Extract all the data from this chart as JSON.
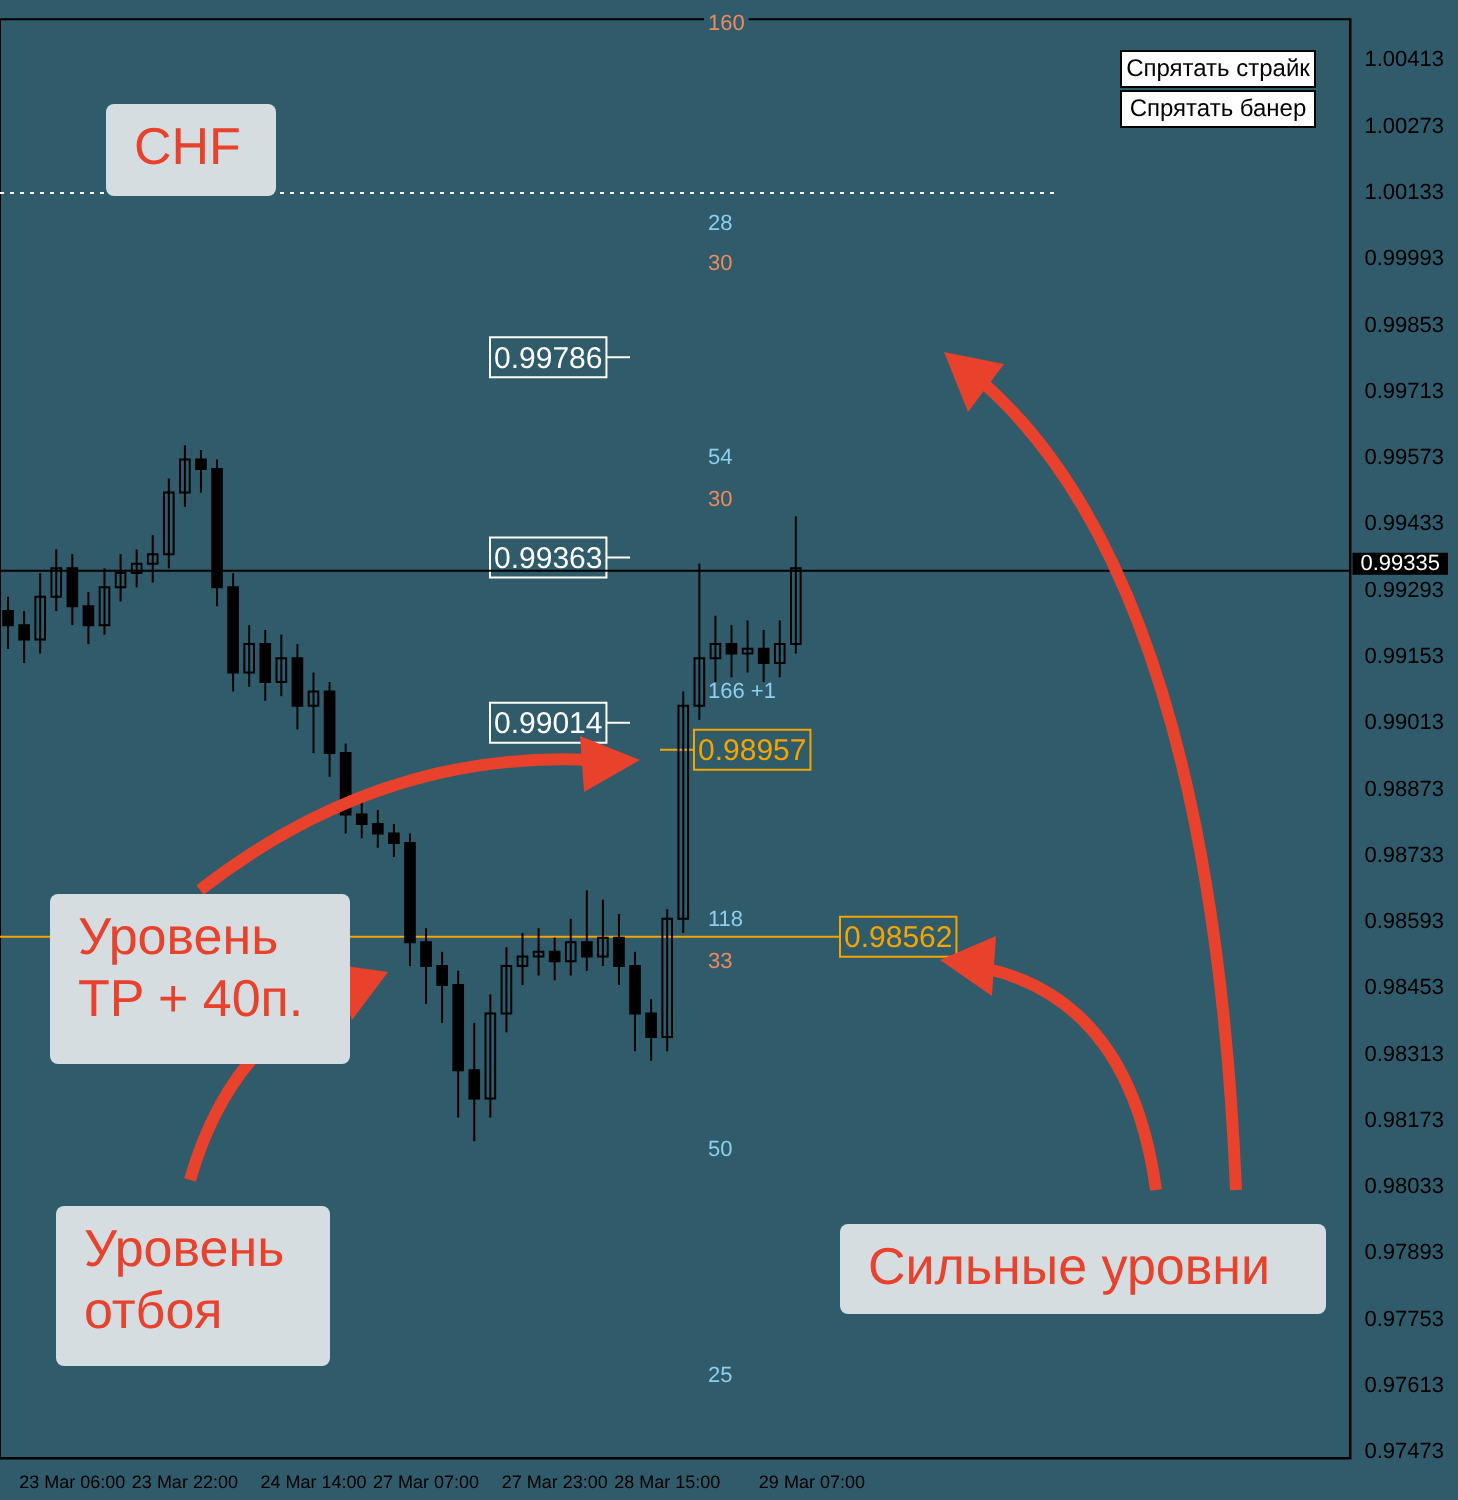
{
  "chart_data": {
    "type": "candlestick",
    "color": "#000000",
    "categories": [
      null,
      null,
      null,
      null,
      "23 Mar 06:00",
      null,
      null,
      null,
      null,
      null,
      null,
      "23 Mar 22:00",
      null,
      null,
      null,
      null,
      null,
      null,
      null,
      "24 Mar 14:00",
      null,
      null,
      null,
      null,
      null,
      null,
      "27 Mar 07:00",
      null,
      null,
      null,
      null,
      null,
      null,
      null,
      "27 Mar 23:00",
      null,
      null,
      null,
      null,
      null,
      null,
      "28 Mar 15:00",
      null,
      null,
      null,
      null,
      null,
      null,
      null,
      null,
      "29 Mar 07:00",
      null,
      null,
      null,
      null,
      null,
      null,
      null,
      null,
      null,
      null,
      null,
      null,
      null,
      null,
      null,
      null,
      null,
      null,
      null,
      null,
      null,
      null,
      null,
      null,
      null,
      null,
      null,
      null,
      null,
      null,
      null,
      null,
      null
    ],
    "ohlc": [
      [
        0.9925,
        0.9928,
        0.9917,
        0.9922
      ],
      [
        0.9922,
        0.9925,
        0.9914,
        0.9919
      ],
      [
        0.9919,
        0.9933,
        0.9916,
        0.9928
      ],
      [
        0.9928,
        0.9938,
        0.9925,
        0.9934
      ],
      [
        0.9934,
        0.9937,
        0.9922,
        0.9926
      ],
      [
        0.9926,
        0.9929,
        0.9918,
        0.9922
      ],
      [
        0.9922,
        0.9934,
        0.992,
        0.993
      ],
      [
        0.993,
        0.9937,
        0.9927,
        0.9933
      ],
      [
        0.9933,
        0.9938,
        0.993,
        0.9935
      ],
      [
        0.9935,
        0.9941,
        0.9931,
        0.9937
      ],
      [
        0.9937,
        0.9953,
        0.9934,
        0.995
      ],
      [
        0.995,
        0.996,
        0.9947,
        0.9957
      ],
      [
        0.9957,
        0.9959,
        0.995,
        0.9955
      ],
      [
        0.9955,
        0.9957,
        0.9926,
        0.993
      ],
      [
        0.993,
        0.9933,
        0.9908,
        0.9912
      ],
      [
        0.9912,
        0.9922,
        0.9909,
        0.9918
      ],
      [
        0.9918,
        0.9921,
        0.9906,
        0.991
      ],
      [
        0.991,
        0.992,
        0.9907,
        0.9915
      ],
      [
        0.9915,
        0.9918,
        0.99,
        0.9905
      ],
      [
        0.9905,
        0.9912,
        0.9895,
        0.9908
      ],
      [
        0.9908,
        0.991,
        0.989,
        0.9895
      ],
      [
        0.9895,
        0.9897,
        0.9878,
        0.9882
      ],
      [
        0.9882,
        0.9885,
        0.9877,
        0.988
      ],
      [
        0.988,
        0.9883,
        0.9875,
        0.9878
      ],
      [
        0.9878,
        0.988,
        0.9873,
        0.9876
      ],
      [
        0.9876,
        0.9878,
        0.985,
        0.9855
      ],
      [
        0.9855,
        0.9858,
        0.9842,
        0.985
      ],
      [
        0.985,
        0.9853,
        0.9838,
        0.9846
      ],
      [
        0.9846,
        0.9849,
        0.9818,
        0.9828
      ],
      [
        0.9828,
        0.9838,
        0.9813,
        0.9822
      ],
      [
        0.9822,
        0.9844,
        0.9818,
        0.984
      ],
      [
        0.984,
        0.9854,
        0.9836,
        0.985
      ],
      [
        0.985,
        0.9857,
        0.9846,
        0.9852
      ],
      [
        0.9852,
        0.9858,
        0.9848,
        0.9853
      ],
      [
        0.9853,
        0.9856,
        0.9847,
        0.9851
      ],
      [
        0.9851,
        0.986,
        0.9848,
        0.9855
      ],
      [
        0.9855,
        0.9866,
        0.9849,
        0.9852
      ],
      [
        0.9852,
        0.9864,
        0.985,
        0.9856
      ],
      [
        0.9856,
        0.9861,
        0.9846,
        0.985
      ],
      [
        0.985,
        0.9853,
        0.9832,
        0.984
      ],
      [
        0.984,
        0.9843,
        0.983,
        0.9835
      ],
      [
        0.9835,
        0.9862,
        0.9832,
        0.986
      ],
      [
        0.986,
        0.9908,
        0.9857,
        0.9905
      ],
      [
        0.9905,
        0.9935,
        0.9902,
        0.9915
      ],
      [
        0.9915,
        0.9924,
        0.991,
        0.9918
      ],
      [
        0.9918,
        0.9922,
        0.9911,
        0.9916
      ],
      [
        0.9916,
        0.9923,
        0.9912,
        0.9917
      ],
      [
        0.9917,
        0.9921,
        0.991,
        0.9914
      ],
      [
        0.9914,
        0.9923,
        0.9911,
        0.9918
      ],
      [
        0.9918,
        0.9945,
        0.9916,
        0.9934
      ],
      null,
      null,
      null,
      null,
      null,
      null,
      null,
      null,
      null,
      null,
      null,
      null,
      null,
      null,
      null,
      null,
      null,
      null,
      null,
      null,
      null,
      null,
      null,
      null,
      null,
      null,
      null,
      null,
      null,
      null,
      null,
      null,
      null,
      null
    ],
    "ylim": [
      0.9746,
      1.005
    ],
    "yticks": [
      1.00413,
      1.00273,
      1.00133,
      0.99993,
      0.99853,
      0.99713,
      0.99573,
      0.99433,
      0.99293,
      0.99153,
      0.99013,
      0.98873,
      0.98733,
      0.98593,
      0.98453,
      0.98313,
      0.98173,
      0.98033,
      0.97893,
      0.97753,
      0.97613,
      0.97473
    ],
    "grid": false,
    "legend": false,
    "ref_lines": [
      {
        "axis": "y",
        "value": 1.00133,
        "color": "#ffffff",
        "line_style": "dotted"
      },
      {
        "axis": "y",
        "value": 0.99786,
        "label": "0.99786",
        "color": "#ffffff"
      },
      {
        "axis": "y",
        "value": 0.99363,
        "label": "0.99363",
        "color": "#ffffff"
      },
      {
        "axis": "y",
        "value": 0.99335,
        "label": "0.99335",
        "color": "#000000"
      },
      {
        "axis": "y",
        "value": 0.99014,
        "label": "0.99014",
        "color": "#ffffff"
      },
      {
        "axis": "y",
        "value": 0.98957,
        "label": "0.98957",
        "color": "#f5a500"
      },
      {
        "axis": "y",
        "value": 0.98562,
        "label": "0.98562",
        "color": "#f5a500"
      }
    ],
    "annotations": [
      "CHF",
      "Уровень TP + 40п.",
      "Уровень отбоя",
      "Сильные уровни",
      "Спрятать страйк",
      "Спрятать банер",
      "160",
      "28",
      "30",
      "54",
      "30",
      "166 +1",
      "118",
      "33",
      "50",
      "25"
    ]
  }
}
